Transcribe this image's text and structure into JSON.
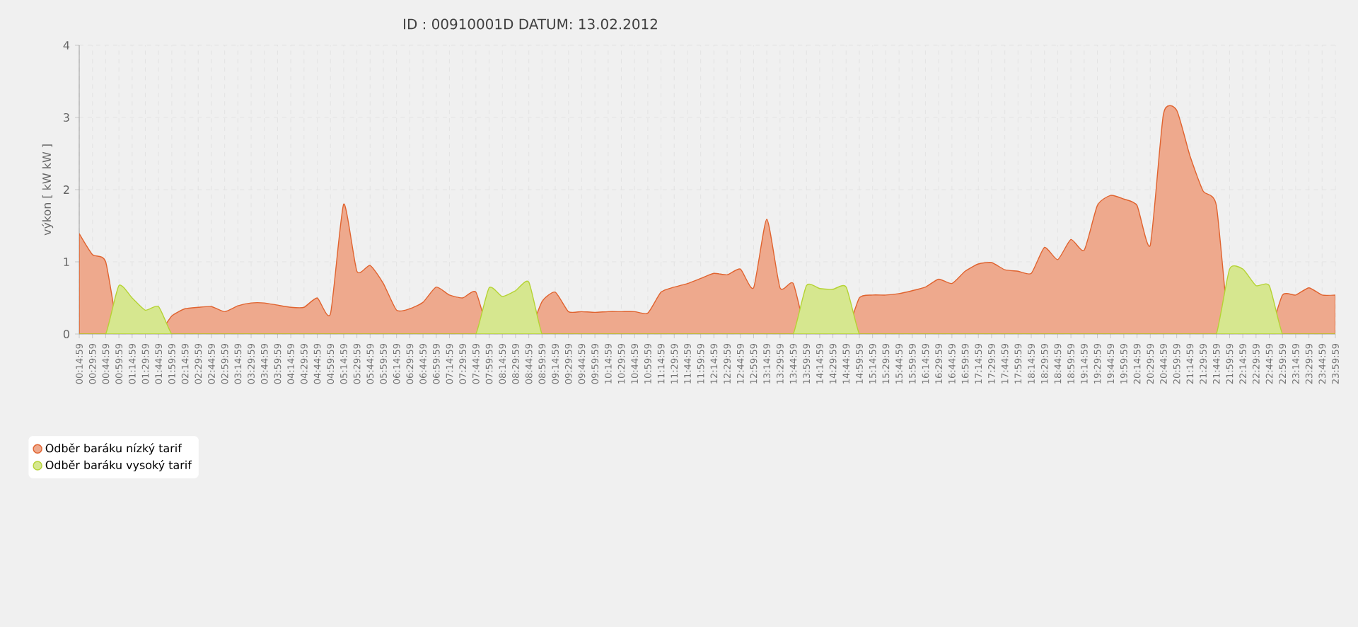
{
  "chart_data": {
    "type": "area",
    "title": "ID : 00910001D DATUM: 13.02.2012",
    "ylabel": "výkon [ kW kW ]",
    "categories": [
      "00:14:59",
      "00:29:59",
      "00:44:59",
      "00:59:59",
      "01:14:59",
      "01:29:59",
      "01:44:59",
      "01:59:59",
      "02:14:59",
      "02:29:59",
      "02:44:59",
      "02:59:59",
      "03:14:59",
      "03:29:59",
      "03:44:59",
      "03:59:59",
      "04:14:59",
      "04:29:59",
      "04:44:59",
      "04:59:59",
      "05:14:59",
      "05:29:59",
      "05:44:59",
      "05:59:59",
      "06:14:59",
      "06:29:59",
      "06:44:59",
      "06:59:59",
      "07:14:59",
      "07:29:59",
      "07:44:59",
      "07:59:59",
      "08:14:59",
      "08:29:59",
      "08:44:59",
      "08:59:59",
      "09:14:59",
      "09:29:59",
      "09:44:59",
      "09:59:59",
      "10:14:59",
      "10:29:59",
      "10:44:59",
      "10:59:59",
      "11:14:59",
      "11:29:59",
      "11:44:59",
      "11:59:59",
      "12:14:59",
      "12:29:59",
      "12:44:59",
      "12:59:59",
      "13:14:59",
      "13:29:59",
      "13:44:59",
      "13:59:59",
      "14:14:59",
      "14:29:59",
      "14:44:59",
      "14:59:59",
      "15:14:59",
      "15:29:59",
      "15:44:59",
      "15:59:59",
      "16:14:59",
      "16:29:59",
      "16:44:59",
      "16:59:59",
      "17:14:59",
      "17:29:59",
      "17:44:59",
      "17:59:59",
      "18:14:59",
      "18:29:59",
      "18:44:59",
      "18:59:59",
      "19:14:59",
      "19:29:59",
      "19:44:59",
      "19:59:59",
      "20:14:59",
      "20:29:59",
      "20:44:59",
      "20:59:59",
      "21:14:59",
      "21:29:59",
      "21:44:59",
      "21:59:59",
      "22:14:59",
      "22:29:59",
      "22:44:59",
      "22:59:59",
      "23:14:59",
      "23:29:59",
      "23:44:59",
      "23:59:59"
    ],
    "series": [
      {
        "name": "Odběr baráku nízký tarif",
        "color": "#e0632f",
        "values": [
          1.39,
          1.1,
          1.0,
          0,
          0,
          0,
          0,
          0.25,
          0.35,
          0.37,
          0.38,
          0.31,
          0.39,
          0.43,
          0.43,
          0.4,
          0.37,
          0.37,
          0.5,
          0.28,
          1.8,
          0.87,
          0.95,
          0.7,
          0.33,
          0.35,
          0.44,
          0.65,
          0.54,
          0.5,
          0.58,
          0,
          0,
          0,
          0,
          0.45,
          0.58,
          0.31,
          0.31,
          0.3,
          0.31,
          0.31,
          0.31,
          0.29,
          0.58,
          0.65,
          0.7,
          0.77,
          0.84,
          0.82,
          0.9,
          0.64,
          1.59,
          0.64,
          0.7,
          0,
          0,
          0,
          0,
          0.5,
          0.54,
          0.54,
          0.56,
          0.6,
          0.65,
          0.76,
          0.7,
          0.87,
          0.97,
          0.99,
          0.89,
          0.87,
          0.84,
          1.2,
          1.03,
          1.31,
          1.16,
          1.78,
          1.92,
          1.87,
          1.78,
          1.23,
          3.05,
          3.1,
          2.47,
          1.98,
          1.78,
          0,
          0,
          0,
          0,
          0.54,
          0.54,
          0.64,
          0.54,
          0.54
        ]
      },
      {
        "name": "Odběr baráku vysoký tarif",
        "color": "#b5d334",
        "values": [
          0,
          0,
          0,
          0.67,
          0.5,
          0.33,
          0.38,
          0,
          0,
          0,
          0,
          0,
          0,
          0,
          0,
          0,
          0,
          0,
          0,
          0,
          0,
          0,
          0,
          0,
          0,
          0,
          0,
          0,
          0,
          0,
          0,
          0.64,
          0.52,
          0.6,
          0.72,
          0,
          0,
          0,
          0,
          0,
          0,
          0,
          0,
          0,
          0,
          0,
          0,
          0,
          0,
          0,
          0,
          0,
          0,
          0,
          0,
          0.67,
          0.63,
          0.62,
          0.65,
          0,
          0,
          0,
          0,
          0,
          0,
          0,
          0,
          0,
          0,
          0,
          0,
          0,
          0,
          0,
          0,
          0,
          0,
          0,
          0,
          0,
          0,
          0,
          0,
          0,
          0,
          0,
          0,
          0.9,
          0.9,
          0.67,
          0.67,
          0,
          0,
          0,
          0,
          0
        ]
      }
    ],
    "ylim": [
      0,
      4
    ],
    "yticks": [
      0,
      1,
      2,
      3,
      4
    ],
    "grid": true,
    "legend": "bottom left"
  }
}
